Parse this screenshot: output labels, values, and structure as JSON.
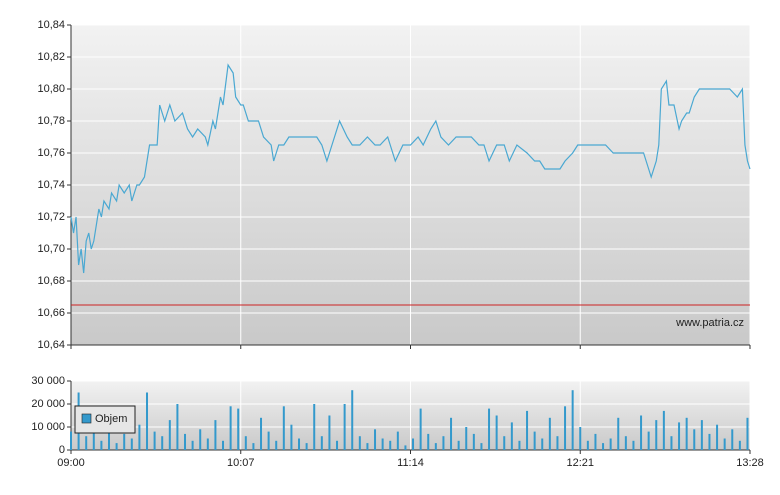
{
  "chart_data": [
    {
      "type": "line",
      "xlim": [
        "09:00",
        "13:28"
      ],
      "xticks": [
        "09:00",
        "10:07",
        "11:14",
        "12:21",
        "13:28"
      ],
      "ylim": [
        10.64,
        10.84
      ],
      "yticks": [
        {
          "value": 10.64,
          "label": "10,64"
        },
        {
          "value": 10.66,
          "label": "10,66"
        },
        {
          "value": 10.68,
          "label": "10,68"
        },
        {
          "value": 10.7,
          "label": "10,70"
        },
        {
          "value": 10.72,
          "label": "10,72"
        },
        {
          "value": 10.74,
          "label": "10,74"
        },
        {
          "value": 10.76,
          "label": "10,76"
        },
        {
          "value": 10.78,
          "label": "10,78"
        },
        {
          "value": 10.8,
          "label": "10,80"
        },
        {
          "value": 10.82,
          "label": "10,82"
        },
        {
          "value": 10.84,
          "label": "10,84"
        }
      ],
      "grid": true,
      "color": "#4aa8d2",
      "reference_line": {
        "value": 10.665,
        "color": "#cc2222"
      },
      "watermark": "www.patria.cz",
      "x": [
        "09:00",
        "09:01",
        "09:02",
        "09:03",
        "09:04",
        "09:05",
        "09:06",
        "09:07",
        "09:08",
        "09:09",
        "09:11",
        "09:12",
        "09:13",
        "09:15",
        "09:16",
        "09:18",
        "09:19",
        "09:21",
        "09:23",
        "09:24",
        "09:26",
        "09:27",
        "09:29",
        "09:31",
        "09:34",
        "09:35",
        "09:37",
        "09:39",
        "09:41",
        "09:44",
        "09:46",
        "09:48",
        "09:50",
        "09:53",
        "09:54",
        "09:56",
        "09:57",
        "09:59",
        "10:00",
        "10:02",
        "10:04",
        "10:05",
        "10:07",
        "10:08",
        "10:10",
        "10:11",
        "10:14",
        "10:16",
        "10:19",
        "10:20",
        "10:22",
        "10:24",
        "10:26",
        "10:29",
        "10:31",
        "10:34",
        "10:37",
        "10:39",
        "10:41",
        "10:44",
        "10:46",
        "10:49",
        "10:51",
        "10:54",
        "10:57",
        "11:00",
        "11:02",
        "11:05",
        "11:08",
        "11:11",
        "11:14",
        "11:17",
        "11:19",
        "11:22",
        "11:24",
        "11:26",
        "11:29",
        "11:32",
        "11:35",
        "11:38",
        "11:41",
        "11:43",
        "11:45",
        "11:48",
        "11:51",
        "11:53",
        "11:56",
        "12:00",
        "12:03",
        "12:05",
        "12:07",
        "12:10",
        "12:13",
        "12:15",
        "12:18",
        "12:20",
        "12:22",
        "12:25",
        "12:28",
        "12:31",
        "12:34",
        "12:37",
        "12:41",
        "12:44",
        "12:46",
        "12:48",
        "12:49",
        "12:51",
        "12:52",
        "12:53",
        "12:55",
        "12:56",
        "12:58",
        "13:00",
        "13:01",
        "13:03",
        "13:04",
        "13:06",
        "13:08",
        "13:12",
        "13:16",
        "13:20",
        "13:23",
        "13:25",
        "13:26",
        "13:27",
        "13:28"
      ],
      "values": [
        10.72,
        10.71,
        10.72,
        10.69,
        10.7,
        10.685,
        10.705,
        10.71,
        10.7,
        10.705,
        10.725,
        10.72,
        10.73,
        10.725,
        10.735,
        10.73,
        10.74,
        10.735,
        10.74,
        10.73,
        10.74,
        10.74,
        10.745,
        10.765,
        10.765,
        10.79,
        10.78,
        10.79,
        10.78,
        10.785,
        10.775,
        10.77,
        10.775,
        10.77,
        10.765,
        10.78,
        10.775,
        10.795,
        10.79,
        10.815,
        10.81,
        10.795,
        10.79,
        10.79,
        10.78,
        10.78,
        10.78,
        10.77,
        10.765,
        10.755,
        10.765,
        10.765,
        10.77,
        10.77,
        10.77,
        10.77,
        10.77,
        10.765,
        10.755,
        10.77,
        10.78,
        10.77,
        10.765,
        10.765,
        10.77,
        10.765,
        10.765,
        10.77,
        10.755,
        10.765,
        10.765,
        10.77,
        10.765,
        10.775,
        10.78,
        10.77,
        10.765,
        10.77,
        10.77,
        10.77,
        10.765,
        10.765,
        10.755,
        10.765,
        10.765,
        10.755,
        10.765,
        10.76,
        10.755,
        10.755,
        10.75,
        10.75,
        10.75,
        10.755,
        10.76,
        10.765,
        10.765,
        10.765,
        10.765,
        10.765,
        10.76,
        10.76,
        10.76,
        10.76,
        10.76,
        10.75,
        10.745,
        10.755,
        10.765,
        10.8,
        10.805,
        10.79,
        10.79,
        10.775,
        10.78,
        10.785,
        10.785,
        10.795,
        10.8,
        10.8,
        10.8,
        10.8,
        10.795,
        10.8,
        10.765,
        10.755,
        10.75
      ]
    },
    {
      "type": "bar",
      "xlim": [
        "09:00",
        "13:28"
      ],
      "xticks": [
        "09:00",
        "10:07",
        "11:14",
        "12:21",
        "13:28"
      ],
      "ylim": [
        0,
        30000
      ],
      "yticks": [
        {
          "value": 0,
          "label": "0"
        },
        {
          "value": 10000,
          "label": "10 000"
        },
        {
          "value": 20000,
          "label": "20 000"
        },
        {
          "value": 30000,
          "label": "30 000"
        }
      ],
      "grid": true,
      "series": [
        {
          "name": "Objem",
          "color": "#3399cc"
        }
      ],
      "x": [
        "09:00",
        "09:03",
        "09:06",
        "09:09",
        "09:12",
        "09:15",
        "09:18",
        "09:21",
        "09:24",
        "09:27",
        "09:30",
        "09:33",
        "09:36",
        "09:39",
        "09:42",
        "09:45",
        "09:48",
        "09:51",
        "09:54",
        "09:57",
        "10:00",
        "10:03",
        "10:06",
        "10:09",
        "10:12",
        "10:15",
        "10:18",
        "10:21",
        "10:24",
        "10:27",
        "10:30",
        "10:33",
        "10:36",
        "10:39",
        "10:42",
        "10:45",
        "10:48",
        "10:51",
        "10:54",
        "10:57",
        "11:00",
        "11:03",
        "11:06",
        "11:09",
        "11:12",
        "11:15",
        "11:18",
        "11:21",
        "11:24",
        "11:27",
        "11:30",
        "11:33",
        "11:36",
        "11:39",
        "11:42",
        "11:45",
        "11:48",
        "11:51",
        "11:54",
        "11:57",
        "12:00",
        "12:03",
        "12:06",
        "12:09",
        "12:12",
        "12:15",
        "12:18",
        "12:21",
        "12:24",
        "12:27",
        "12:30",
        "12:33",
        "12:36",
        "12:39",
        "12:42",
        "12:45",
        "12:48",
        "12:51",
        "12:54",
        "12:57",
        "13:00",
        "13:03",
        "13:06",
        "13:09",
        "13:12",
        "13:15",
        "13:18",
        "13:21",
        "13:24",
        "13:27"
      ],
      "values": [
        8000,
        25000,
        6000,
        12000,
        4000,
        9000,
        3000,
        7000,
        5000,
        11000,
        25000,
        8000,
        6000,
        13000,
        20000,
        7000,
        4000,
        9000,
        5000,
        13000,
        4000,
        19000,
        18000,
        6000,
        3000,
        14000,
        8000,
        4000,
        19000,
        11000,
        5000,
        3000,
        20000,
        6000,
        15000,
        4000,
        20000,
        26000,
        6000,
        3000,
        9000,
        5000,
        4000,
        8000,
        2000,
        5000,
        18000,
        7000,
        3000,
        6000,
        14000,
        4000,
        10000,
        7000,
        3000,
        18000,
        15000,
        6000,
        12000,
        4000,
        17000,
        8000,
        5000,
        14000,
        6000,
        19000,
        26000,
        10000,
        4000,
        7000,
        3000,
        5000,
        14000,
        6000,
        4000,
        15000,
        8000,
        13000,
        17000,
        6000,
        12000,
        14000,
        9000,
        13000,
        7000,
        11000,
        5000,
        9000,
        4000,
        14000
      ]
    }
  ]
}
